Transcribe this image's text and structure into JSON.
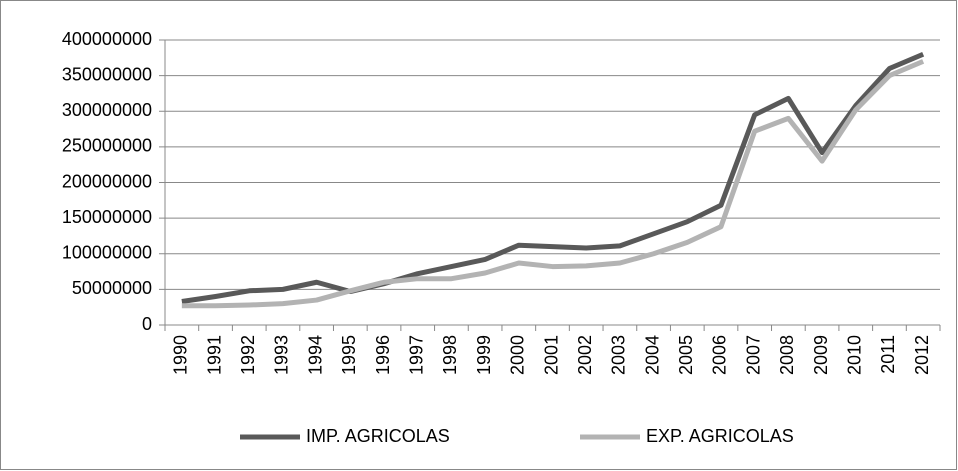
{
  "chart_data": {
    "type": "line",
    "categories": [
      "1990",
      "1991",
      "1992",
      "1993",
      "1994",
      "1995",
      "1996",
      "1997",
      "1998",
      "1999",
      "2000",
      "2001",
      "2002",
      "2003",
      "2004",
      "2005",
      "2006",
      "2007",
      "2008",
      "2009",
      "2010",
      "2011",
      "2012"
    ],
    "series": [
      {
        "name": "IMP. AGRICOLAS",
        "color": "#595959",
        "values": [
          33000000,
          40000000,
          48000000,
          50000000,
          60000000,
          47000000,
          58000000,
          72000000,
          82000000,
          92000000,
          112000000,
          110000000,
          108000000,
          111000000,
          128000000,
          145000000,
          168000000,
          295000000,
          318000000,
          242000000,
          308000000,
          360000000,
          380000000
        ]
      },
      {
        "name": "EXP. AGRICOLAS",
        "color": "#b3b3b3",
        "values": [
          27000000,
          27000000,
          28000000,
          30000000,
          35000000,
          48000000,
          60000000,
          65000000,
          65000000,
          73000000,
          87000000,
          82000000,
          83000000,
          87000000,
          100000000,
          116000000,
          138000000,
          272000000,
          290000000,
          230000000,
          302000000,
          350000000,
          370000000
        ]
      }
    ],
    "ylim": [
      0,
      400000000
    ],
    "yticks": [
      0,
      50000000,
      100000000,
      150000000,
      200000000,
      250000000,
      300000000,
      350000000,
      400000000
    ],
    "grid": true,
    "legend": "bottom"
  }
}
